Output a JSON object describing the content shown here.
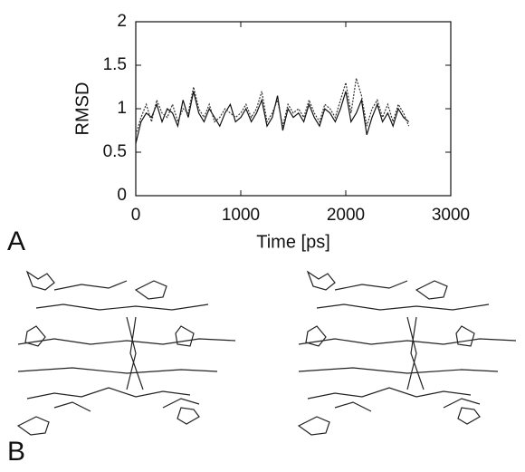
{
  "chart_data": {
    "type": "line",
    "x_label": "Time [ps]",
    "y_label": "RMSD",
    "panel_labels": [
      "A",
      "B"
    ],
    "x": [
      0,
      50,
      100,
      150,
      200,
      250,
      300,
      350,
      400,
      450,
      500,
      550,
      600,
      650,
      700,
      750,
      800,
      850,
      900,
      950,
      1000,
      1050,
      1100,
      1150,
      1200,
      1250,
      1300,
      1350,
      1400,
      1450,
      1500,
      1550,
      1600,
      1650,
      1700,
      1750,
      1800,
      1850,
      1900,
      1950,
      2000,
      2050,
      2100,
      2150,
      2200,
      2250,
      2300,
      2350,
      2400,
      2450,
      2500,
      2550,
      2600
    ],
    "series": [
      {
        "color": "#111111",
        "dash": false,
        "values": [
          0.6,
          0.85,
          0.95,
          0.9,
          1.05,
          0.85,
          1.0,
          0.95,
          0.8,
          1.1,
          0.9,
          1.2,
          0.95,
          0.85,
          1.0,
          0.9,
          0.8,
          0.95,
          1.05,
          0.85,
          0.9,
          1.0,
          0.85,
          0.95,
          1.1,
          0.8,
          0.9,
          1.15,
          0.75,
          1.0,
          0.9,
          0.95,
          0.85,
          1.05,
          0.9,
          0.8,
          1.0,
          0.95,
          0.85,
          1.0,
          1.2,
          0.85,
          0.95,
          1.1,
          0.7,
          0.9,
          1.05,
          0.85,
          0.95,
          0.8,
          1.0,
          0.9,
          0.85
        ]
      },
      {
        "color": "#333333",
        "dash": true,
        "values": [
          0.7,
          0.9,
          1.05,
          0.85,
          1.1,
          0.95,
          0.9,
          1.05,
          0.85,
          1.0,
          0.95,
          1.25,
          1.0,
          0.9,
          1.05,
          0.85,
          0.9,
          1.0,
          0.95,
          0.9,
          0.95,
          1.05,
          0.9,
          1.0,
          1.2,
          0.85,
          0.95,
          1.1,
          0.8,
          1.05,
          0.95,
          1.0,
          0.9,
          1.1,
          0.95,
          0.85,
          1.05,
          1.0,
          0.9,
          1.1,
          1.3,
          0.95,
          1.35,
          1.15,
          0.8,
          1.0,
          1.1,
          0.9,
          1.05,
          0.85,
          1.05,
          0.95,
          0.8
        ]
      }
    ],
    "xlim": [
      0,
      3000
    ],
    "xticks": [
      0,
      1000,
      2000,
      3000
    ],
    "ylim": [
      0,
      2
    ],
    "yticks": [
      0,
      0.5,
      1,
      1.5,
      2
    ]
  }
}
